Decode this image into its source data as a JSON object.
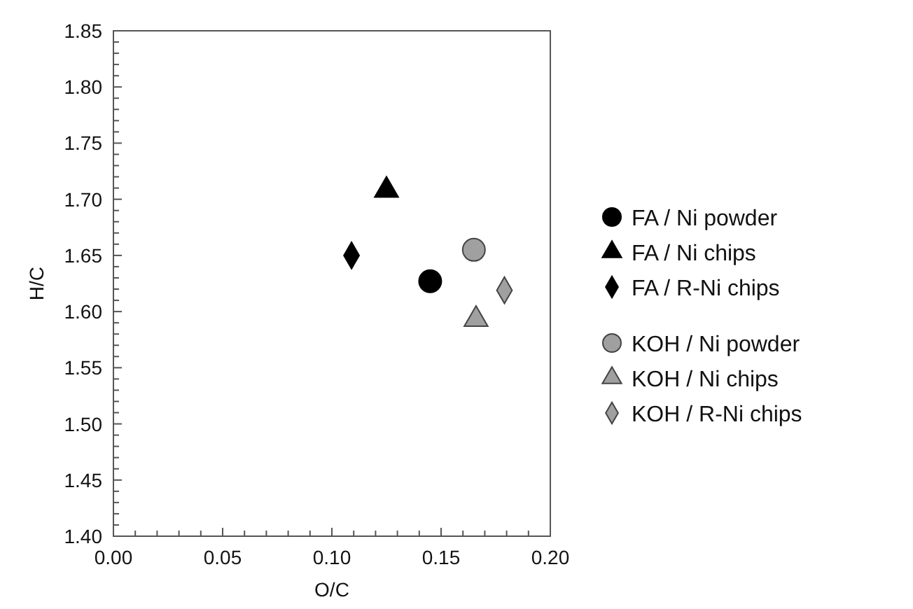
{
  "chart_data": {
    "type": "scatter",
    "xlabel": "O/C",
    "ylabel": "H/C",
    "xlim": [
      0,
      0.2
    ],
    "ylim": [
      1.4,
      1.85
    ],
    "xticks": [
      {
        "value": 0,
        "label": "0.00"
      },
      {
        "value": 0.01,
        "label": null
      },
      {
        "value": 0.02,
        "label": null
      },
      {
        "value": 0.03,
        "label": null
      },
      {
        "value": 0.04,
        "label": null
      },
      {
        "value": 0.05,
        "label": "0.05"
      },
      {
        "value": 0.06,
        "label": null
      },
      {
        "value": 0.07,
        "label": null
      },
      {
        "value": 0.08,
        "label": null
      },
      {
        "value": 0.09,
        "label": null
      },
      {
        "value": 0.1,
        "label": "0.10"
      },
      {
        "value": 0.11,
        "label": null
      },
      {
        "value": 0.12,
        "label": null
      },
      {
        "value": 0.13,
        "label": null
      },
      {
        "value": 0.14,
        "label": null
      },
      {
        "value": 0.15,
        "label": "0.15"
      },
      {
        "value": 0.16,
        "label": null
      },
      {
        "value": 0.17,
        "label": null
      },
      {
        "value": 0.18,
        "label": null
      },
      {
        "value": 0.19,
        "label": null
      },
      {
        "value": 0.2,
        "label": "0.20"
      }
    ],
    "yticks": [
      {
        "value": 1.4,
        "label": "1.40"
      },
      {
        "value": 1.41,
        "label": null
      },
      {
        "value": 1.42,
        "label": null
      },
      {
        "value": 1.43,
        "label": null
      },
      {
        "value": 1.44,
        "label": null
      },
      {
        "value": 1.45,
        "label": "1.45"
      },
      {
        "value": 1.46,
        "label": null
      },
      {
        "value": 1.47,
        "label": null
      },
      {
        "value": 1.48,
        "label": null
      },
      {
        "value": 1.49,
        "label": null
      },
      {
        "value": 1.5,
        "label": "1.50"
      },
      {
        "value": 1.51,
        "label": null
      },
      {
        "value": 1.52,
        "label": null
      },
      {
        "value": 1.53,
        "label": null
      },
      {
        "value": 1.54,
        "label": null
      },
      {
        "value": 1.55,
        "label": "1.55"
      },
      {
        "value": 1.56,
        "label": null
      },
      {
        "value": 1.57,
        "label": null
      },
      {
        "value": 1.58,
        "label": null
      },
      {
        "value": 1.59,
        "label": null
      },
      {
        "value": 1.6,
        "label": "1.60"
      },
      {
        "value": 1.61,
        "label": null
      },
      {
        "value": 1.62,
        "label": null
      },
      {
        "value": 1.63,
        "label": null
      },
      {
        "value": 1.64,
        "label": null
      },
      {
        "value": 1.65,
        "label": "1.65"
      },
      {
        "value": 1.66,
        "label": null
      },
      {
        "value": 1.67,
        "label": null
      },
      {
        "value": 1.68,
        "label": null
      },
      {
        "value": 1.69,
        "label": null
      },
      {
        "value": 1.7,
        "label": "1.70"
      },
      {
        "value": 1.71,
        "label": null
      },
      {
        "value": 1.72,
        "label": null
      },
      {
        "value": 1.73,
        "label": null
      },
      {
        "value": 1.74,
        "label": null
      },
      {
        "value": 1.75,
        "label": "1.75"
      },
      {
        "value": 1.76,
        "label": null
      },
      {
        "value": 1.77,
        "label": null
      },
      {
        "value": 1.78,
        "label": null
      },
      {
        "value": 1.79,
        "label": null
      },
      {
        "value": 1.8,
        "label": "1.80"
      },
      {
        "value": 1.81,
        "label": null
      },
      {
        "value": 1.82,
        "label": null
      },
      {
        "value": 1.83,
        "label": null
      },
      {
        "value": 1.84,
        "label": null
      },
      {
        "value": 1.85,
        "label": "1.85"
      }
    ],
    "grid": false,
    "legend": "right",
    "series": [
      {
        "name": "FA / Ni powder",
        "color": "#000000",
        "marker": "circle",
        "x": [
          0.145
        ],
        "values": [
          1.627
        ]
      },
      {
        "name": "FA / Ni chips",
        "color": "#000000",
        "marker": "triangle",
        "x": [
          0.125
        ],
        "values": [
          1.708
        ]
      },
      {
        "name": "FA / R-Ni chips",
        "color": "#000000",
        "marker": "diamond",
        "x": [
          0.109
        ],
        "values": [
          1.65
        ]
      },
      {
        "name": "KOH / Ni powder",
        "color": "#a0a0a0",
        "marker": "circle",
        "x": [
          0.165
        ],
        "values": [
          1.655
        ]
      },
      {
        "name": "KOH / Ni chips",
        "color": "#a0a0a0",
        "marker": "triangle",
        "x": [
          0.166
        ],
        "values": [
          1.593
        ]
      },
      {
        "name": "KOH / R-Ni chips",
        "color": "#a0a0a0",
        "marker": "diamond",
        "x": [
          0.179
        ],
        "values": [
          1.619
        ]
      }
    ]
  }
}
